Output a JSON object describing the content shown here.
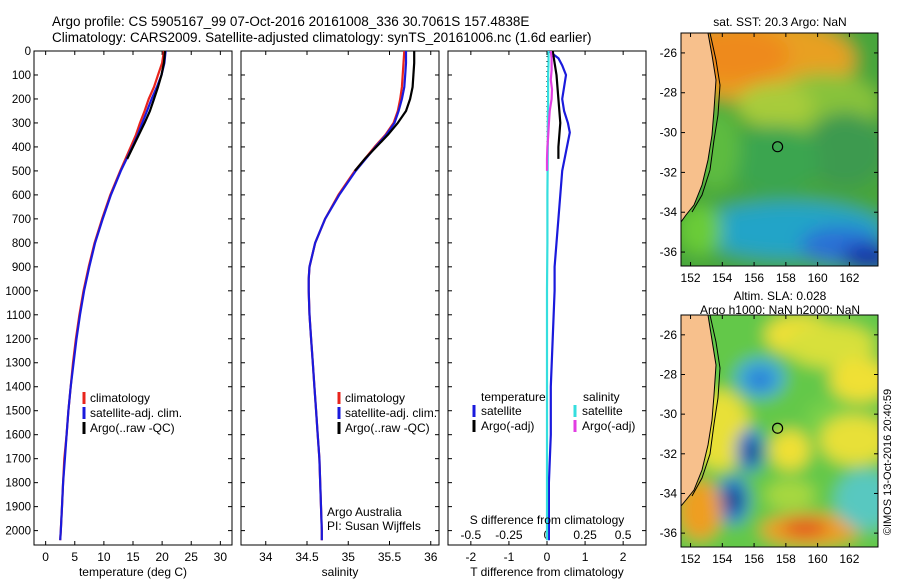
{
  "header": {
    "line1": "Argo profile: CS 5905167_99 07-Oct-2016 20161008_336 30.7061S 157.4838E",
    "line2": "Climatology: CARS2009. Satellite-adjusted climatology: synTS_20161006.nc (1.6d earlier)"
  },
  "colors": {
    "clim": "#e8241c",
    "sat": "#1a1adc",
    "argo": "#000000",
    "sat_s": "#35dede",
    "argo_s": "#e23ee2",
    "land": "#f7c08c"
  },
  "credits": {
    "line1": "Argo Australia",
    "line2": "PI: Susan Wijffels",
    "imos": "©IMOS 13-Oct-2016 20:40:59"
  },
  "chart_data": [
    {
      "type": "line",
      "id": "temperature",
      "xlabel": "temperature (deg C)",
      "ylabel": "",
      "xlim": [
        -2,
        32
      ],
      "ylim": [
        2060,
        0
      ],
      "xticks": [
        "0",
        "5",
        "10",
        "15",
        "20",
        "25",
        "30"
      ],
      "xtick_values": [
        0,
        5,
        10,
        15,
        20,
        25,
        30
      ],
      "yticks": [
        "0",
        "100",
        "200",
        "300",
        "400",
        "500",
        "600",
        "700",
        "800",
        "900",
        "1000",
        "1100",
        "1200",
        "1300",
        "1400",
        "1500",
        "1600",
        "1700",
        "1800",
        "1900",
        "2000"
      ],
      "ytick_values": [
        0,
        100,
        200,
        300,
        400,
        500,
        600,
        700,
        800,
        900,
        1000,
        1100,
        1200,
        1300,
        1400,
        1500,
        1600,
        1700,
        1800,
        1900,
        2000
      ],
      "legend": [
        "climatology",
        "satellite-adj. clim.",
        "Argo(..raw -QC)"
      ],
      "series": [
        {
          "name": "climatology",
          "color": "clim",
          "depth": [
            0,
            50,
            100,
            150,
            200,
            250,
            300,
            350,
            400,
            500,
            600,
            700,
            800,
            900,
            1000,
            1100,
            1200,
            1300,
            1400,
            1500,
            1600,
            1700,
            1800,
            1900,
            2000,
            2040
          ],
          "value": [
            20.3,
            20.0,
            19.3,
            18.6,
            17.7,
            17.0,
            16.2,
            15.5,
            14.6,
            12.8,
            11.1,
            9.7,
            8.4,
            7.4,
            6.5,
            5.8,
            5.2,
            4.7,
            4.3,
            3.9,
            3.6,
            3.2,
            3.0,
            2.8,
            2.6,
            2.5
          ]
        },
        {
          "name": "satellite-adj. clim.",
          "color": "sat",
          "depth": [
            0,
            50,
            100,
            150,
            200,
            250,
            300,
            350,
            400,
            500,
            600,
            700,
            800,
            900,
            1000,
            1100,
            1200,
            1300,
            1400,
            1500,
            1600,
            1700,
            1800,
            1900,
            2000,
            2040
          ],
          "value": [
            20.6,
            20.4,
            19.9,
            19.1,
            18.2,
            17.4,
            16.6,
            15.8,
            14.9,
            12.9,
            11.2,
            9.8,
            8.5,
            7.5,
            6.6,
            5.9,
            5.3,
            4.8,
            4.3,
            3.9,
            3.6,
            3.3,
            3.0,
            2.8,
            2.6,
            2.5
          ]
        },
        {
          "name": "Argo(..raw -QC)",
          "color": "argo",
          "depth": [
            0,
            50,
            100,
            150,
            200,
            250,
            300,
            350,
            400,
            450
          ],
          "value": [
            20.5,
            20.3,
            19.9,
            19.3,
            18.6,
            17.9,
            17.0,
            16.0,
            15.0,
            14.0
          ]
        }
      ]
    },
    {
      "type": "line",
      "id": "salinity",
      "xlabel": "salinity",
      "xlim": [
        33.7,
        36.1
      ],
      "ylim": [
        2060,
        0
      ],
      "xticks": [
        "34",
        "34.5",
        "35",
        "35.5",
        "36"
      ],
      "xtick_values": [
        34,
        34.5,
        35,
        35.5,
        36
      ],
      "legend": [
        "climatology",
        "satellite-adj. clim.",
        "Argo(..raw -QC)"
      ],
      "series": [
        {
          "name": "climatology",
          "color": "clim",
          "depth": [
            0,
            50,
            100,
            150,
            200,
            250,
            300,
            350,
            400,
            450,
            500,
            600,
            700,
            800,
            900,
            950,
            1000,
            1100,
            1200,
            1300,
            1400,
            1500,
            1600,
            1700,
            1800,
            1900,
            2000,
            2040
          ],
          "value": [
            35.68,
            35.67,
            35.66,
            35.65,
            35.63,
            35.6,
            35.55,
            35.45,
            35.32,
            35.2,
            35.08,
            34.88,
            34.72,
            34.6,
            34.53,
            34.52,
            34.52,
            34.53,
            34.55,
            34.57,
            34.59,
            34.61,
            34.63,
            34.65,
            34.66,
            34.67,
            34.68,
            34.68
          ]
        },
        {
          "name": "satellite-adj. clim.",
          "color": "sat",
          "depth": [
            0,
            50,
            100,
            150,
            200,
            250,
            300,
            350,
            400,
            450,
            500,
            600,
            700,
            800,
            900,
            950,
            1000,
            1100,
            1200,
            1300,
            1400,
            1500,
            1600,
            1700,
            1800,
            1900,
            2000,
            2040
          ],
          "value": [
            35.7,
            35.7,
            35.69,
            35.68,
            35.65,
            35.61,
            35.56,
            35.46,
            35.33,
            35.21,
            35.09,
            34.89,
            34.72,
            34.6,
            34.53,
            34.52,
            34.52,
            34.53,
            34.55,
            34.57,
            34.59,
            34.61,
            34.63,
            34.65,
            34.66,
            34.67,
            34.68,
            34.68
          ]
        },
        {
          "name": "Argo(..raw -QC)",
          "color": "argo",
          "depth": [
            0,
            50,
            100,
            150,
            200,
            250,
            300,
            350,
            400,
            450,
            500
          ],
          "value": [
            35.8,
            35.8,
            35.79,
            35.78,
            35.75,
            35.7,
            35.6,
            35.48,
            35.34,
            35.2,
            35.08
          ]
        }
      ]
    },
    {
      "type": "line",
      "id": "difference",
      "xlabel": "T difference from climatology",
      "xlabel2": "S difference from climatology",
      "xlim": [
        -2.6,
        2.6
      ],
      "ylim": [
        2060,
        0
      ],
      "xticks": [
        "-2",
        "-1",
        "0",
        "1",
        "2"
      ],
      "xtick_values": [
        -2,
        -1,
        0,
        1,
        2
      ],
      "xticks2": [
        "-0.5",
        "-0.25",
        "0",
        "0.25",
        "0.5"
      ],
      "xtick2_values": [
        -0.5,
        -0.25,
        0,
        0.25,
        0.5
      ],
      "legend_t_title": "temperature",
      "legend_s_title": "salinity",
      "legend_t": [
        "satellite",
        "Argo(-adj)"
      ],
      "legend_s": [
        "satellite",
        "Argo(-adj)"
      ],
      "series": [
        {
          "name": "temperature satellite",
          "color": "sat",
          "depth": [
            0,
            30,
            60,
            100,
            150,
            200,
            250,
            300,
            340,
            380,
            420,
            500,
            600,
            700,
            800,
            900,
            1000,
            1200,
            1400,
            1600,
            1800,
            2000,
            2040
          ],
          "value": [
            0.05,
            0.3,
            0.4,
            0.5,
            0.45,
            0.4,
            0.45,
            0.55,
            0.6,
            0.55,
            0.5,
            0.4,
            0.35,
            0.3,
            0.25,
            0.2,
            0.2,
            0.15,
            0.1,
            0.1,
            0.05,
            0.05,
            0.05
          ]
        },
        {
          "name": "temperature Argo(-adj)",
          "color": "argo",
          "depth": [
            0,
            100,
            200,
            300,
            400,
            450
          ],
          "value": [
            0.15,
            0.25,
            0.3,
            0.35,
            0.3,
            0.3
          ]
        },
        {
          "name": "salinity satellite",
          "color": "sat_s",
          "depth": [
            0,
            50,
            100,
            200,
            300,
            400,
            600,
            800,
            1000,
            1200,
            1400,
            1600,
            1800,
            2000,
            2040
          ],
          "value": [
            0.04,
            0.04,
            0.03,
            0.03,
            0.02,
            0.02,
            0.01,
            0.01,
            0.0,
            0.0,
            0.0,
            0.0,
            0.0,
            0.0,
            0.0
          ]
        },
        {
          "name": "salinity Argo(-adj)",
          "color": "argo_s",
          "depth": [
            0,
            30,
            80,
            120,
            160,
            200,
            250,
            300,
            360,
            400,
            450,
            500
          ],
          "value": [
            0.1,
            0.12,
            0.12,
            0.1,
            0.13,
            0.12,
            0.07,
            0.05,
            0.03,
            0.01,
            0.0,
            0.0
          ]
        }
      ]
    },
    {
      "type": "heatmap",
      "id": "sst_map",
      "title": "sat. SST: 20.3 Argo: NaN",
      "xlim": [
        151.4,
        163.8
      ],
      "ylim": [
        -36.7,
        -25
      ],
      "xticks": [
        "152",
        "154",
        "156",
        "158",
        "160",
        "162"
      ],
      "xtick_values": [
        152,
        154,
        156,
        158,
        160,
        162
      ],
      "yticks": [
        "-26",
        "-28",
        "-30",
        "-32",
        "-34",
        "-36"
      ],
      "ytick_values": [
        -26,
        -28,
        -30,
        -32,
        -34,
        -36
      ],
      "marker": {
        "lon": 157.48,
        "lat": -30.71
      }
    },
    {
      "type": "heatmap",
      "id": "sla_map",
      "title": "Altim. SLA: 0.028",
      "subtitle": "Argo h1000: NaN h2000: NaN",
      "xlim": [
        151.4,
        163.8
      ],
      "ylim": [
        -36.7,
        -25
      ],
      "xticks": [
        "152",
        "154",
        "156",
        "158",
        "160",
        "162"
      ],
      "xtick_values": [
        152,
        154,
        156,
        158,
        160,
        162
      ],
      "yticks": [
        "-26",
        "-28",
        "-30",
        "-32",
        "-34",
        "-36"
      ],
      "ytick_values": [
        -26,
        -28,
        -30,
        -32,
        -34,
        -36
      ],
      "marker": {
        "lon": 157.48,
        "lat": -30.71
      }
    }
  ]
}
